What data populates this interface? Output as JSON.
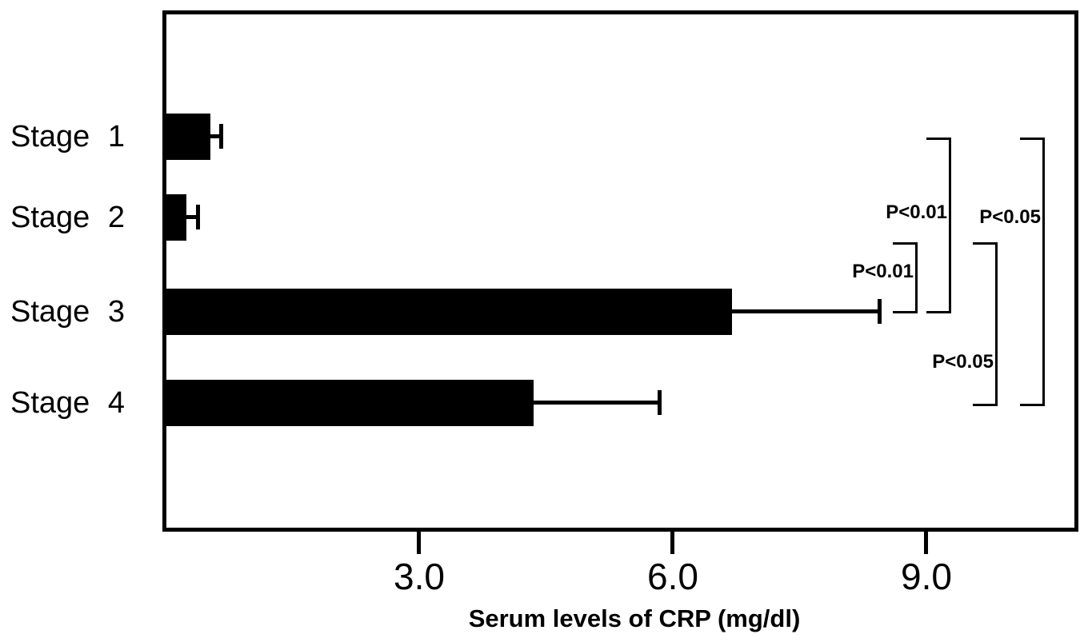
{
  "figure": {
    "background": "#ffffff",
    "ink_color": "#000000"
  },
  "chart_data": {
    "type": "bar",
    "orientation": "horizontal",
    "xlabel": "Serum levels of CRP (mg/dl)",
    "categories": [
      "Stage 1",
      "Stage 2",
      "Stage 3",
      "Stage 4"
    ],
    "values": [
      0.53,
      0.25,
      6.7,
      4.35
    ],
    "errors": [
      0.13,
      0.14,
      1.75,
      1.5
    ],
    "xlim": [
      0,
      10.7
    ],
    "xticks": [
      {
        "value": 3,
        "label": "3.0"
      },
      {
        "value": 6,
        "label": "6.0"
      },
      {
        "value": 9,
        "label": "9.0"
      }
    ],
    "grid": "off",
    "legend": "none",
    "bar_color": "#000000",
    "error_bar_color": "#000000",
    "comparisons": [
      {
        "between": [
          "Stage 1",
          "Stage 3"
        ],
        "label": "P<0.01"
      },
      {
        "between": [
          "Stage 1",
          "Stage 4"
        ],
        "label": "P<0.05"
      },
      {
        "between": [
          "Stage 2",
          "Stage 3"
        ],
        "label": "P<0.01"
      },
      {
        "between": [
          "Stage 2",
          "Stage 4"
        ],
        "label": "P<0.05"
      }
    ]
  }
}
